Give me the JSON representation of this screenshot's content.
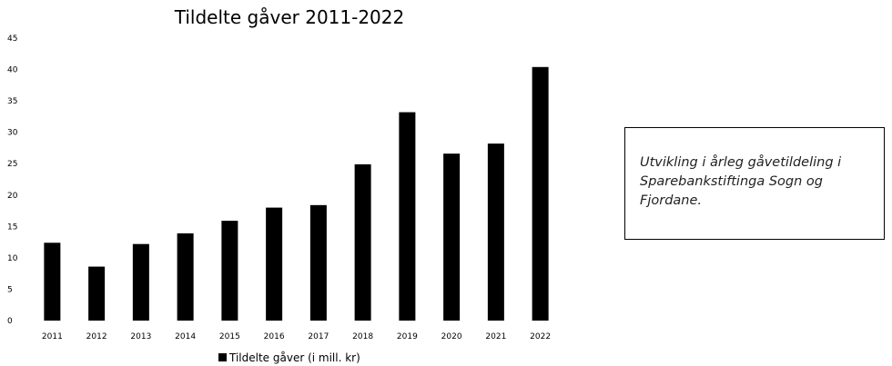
{
  "chart_data": {
    "type": "bar",
    "title": "Tildelte gåver 2011-2022",
    "categories": [
      "2011",
      "2012",
      "2013",
      "2014",
      "2015",
      "2016",
      "2017",
      "2018",
      "2019",
      "2020",
      "2021",
      "2022"
    ],
    "series": [
      {
        "name": "Tildelte gåver (i mill. kr)",
        "values": [
          12.4,
          8.6,
          12.2,
          13.9,
          15.9,
          18.0,
          18.4,
          24.9,
          33.2,
          26.6,
          28.2,
          40.4
        ],
        "color": "#000000"
      }
    ],
    "ylim": [
      0,
      45
    ],
    "yticks": [
      0,
      5,
      10,
      15,
      20,
      25,
      30,
      35,
      40,
      45
    ],
    "xlabel": "",
    "ylabel": "",
    "grid": false,
    "legend_position": "bottom"
  },
  "note": {
    "text": "Utvikling i årleg gåvetildeling i Sparebankstiftinga Sogn og Fjordane."
  }
}
